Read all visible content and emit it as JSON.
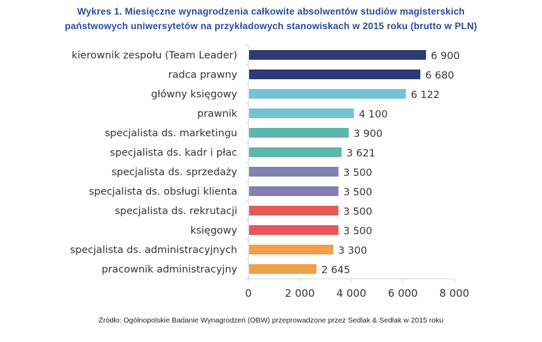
{
  "title_line1": "Wykres 1. Miesięczne wynagrodzenia całkowite absolwentów studiów magisterskich",
  "title_line2": "państwowych uniwersytetów na przykładowych stanowiskach w 2015 roku (brutto w PLN)",
  "source": "Źródło: Ogólnopolskie Badanie Wynagrodzeń (OBW) przeprowadzone przez Sedlak & Sedlak w 2015 roku",
  "chart_data": {
    "type": "bar",
    "orientation": "horizontal",
    "title": "Wykres 1. Miesięczne wynagrodzenia całkowite absolwentów studiów magisterskich państwowych uniwersytetów na przykładowych stanowiskach w 2015 roku (brutto w PLN)",
    "categories": [
      "kierownik zespołu (Team Leader)",
      "radca prawny",
      "główny księgowy",
      "prawnik",
      "specjalista ds. marketingu",
      "specjalista ds. kadr i płac",
      "specjalista ds. sprzedaży",
      "specjalista ds. obsługi klienta",
      "specjalista ds. rekrutacji",
      "księgowy",
      "specjalista ds. administracyjnych",
      "pracownik administracyjny"
    ],
    "values": [
      6900,
      6680,
      6122,
      4100,
      3900,
      3621,
      3500,
      3500,
      3500,
      3500,
      3300,
      2645
    ],
    "value_labels": [
      "6 900",
      "6 680",
      "6 122",
      "4 100",
      "3 900",
      "3 621",
      "3 500",
      "3 500",
      "3 500",
      "3 500",
      "3 300",
      "2 645"
    ],
    "colors": [
      "#2E3A74",
      "#2E3A74",
      "#74C2D6",
      "#74C2D6",
      "#5DB6AA",
      "#5DB6AA",
      "#8481B0",
      "#8481B0",
      "#E45A5A",
      "#E45A5A",
      "#F0A048",
      "#F0A048"
    ],
    "xlim": [
      0,
      8000
    ],
    "xticks": [
      0,
      2000,
      4000,
      6000,
      8000
    ],
    "xtick_labels": [
      "0",
      "2 000",
      "4 000",
      "6 000",
      "8 000"
    ],
    "grid": false
  }
}
